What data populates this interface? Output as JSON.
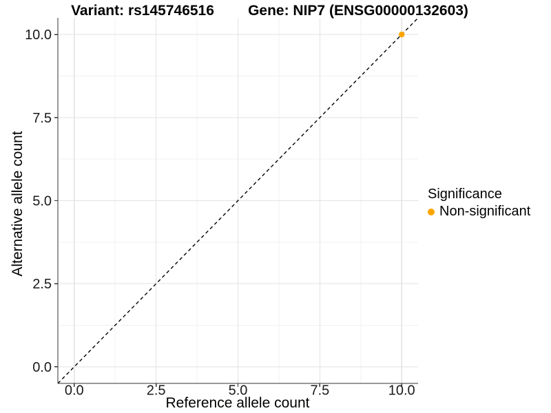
{
  "chart_data": {
    "type": "scatter",
    "titles": {
      "variant": "Variant: rs145746516",
      "gene": "Gene: NIP7 (ENSG00000132603)"
    },
    "xlabel": "Reference allele count",
    "ylabel": "Alternative allele count",
    "xlim": [
      -0.5,
      10.5
    ],
    "ylim": [
      -0.5,
      10.5
    ],
    "x_ticks": [
      0.0,
      2.5,
      5.0,
      7.5,
      10.0
    ],
    "y_ticks": [
      0.0,
      2.5,
      5.0,
      7.5,
      10.0
    ],
    "x_tick_labels": [
      "0.0",
      "2.5",
      "5.0",
      "7.5",
      "10.0"
    ],
    "y_tick_labels": [
      "0.0",
      "2.5",
      "5.0",
      "7.5",
      "10.0"
    ],
    "x_minor_ticks": [
      1.25,
      3.75,
      6.25,
      8.75
    ],
    "y_minor_ticks": [
      1.25,
      3.75,
      6.25,
      8.75
    ],
    "grid": true,
    "series": [
      {
        "name": "Non-significant",
        "color": "#FFA500",
        "points": [
          {
            "x": 10,
            "y": 10
          }
        ]
      }
    ],
    "reference_line": {
      "type": "identity",
      "style": "dashed",
      "color": "#000000"
    },
    "legend": {
      "title": "Significance",
      "position": "right",
      "entries": [
        {
          "label": "Non-significant",
          "color": "#FFA500"
        }
      ]
    },
    "colors": {
      "grid_major": "#e2e2e2",
      "grid_minor": "#f0f0f0",
      "axis_line": "#333333",
      "tick_text": "#1a1a1a",
      "background": "#ffffff"
    }
  }
}
